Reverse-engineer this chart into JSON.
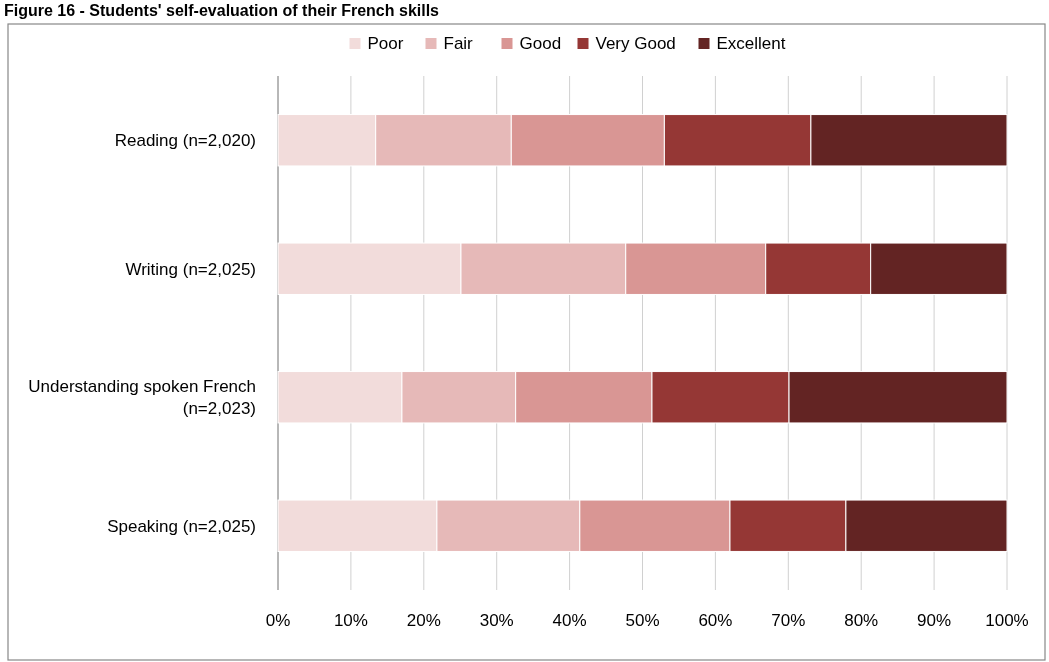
{
  "chart_data": {
    "type": "bar",
    "orientation": "horizontal",
    "stacked": true,
    "title": "Figure 16 - Students' self-evaluation of their French skills",
    "categories": [
      "Reading (n=2,020)",
      "Writing (n=2,025)",
      "Understanding spoken French (n=2,023)",
      "Speaking (n=2,025)"
    ],
    "series": [
      {
        "name": "Poor",
        "color": "#f2dcdb",
        "values": [
          13.4,
          25.1,
          17.0,
          21.8
        ]
      },
      {
        "name": "Fair",
        "color": "#e6b9b8",
        "values": [
          18.6,
          22.6,
          15.6,
          19.6
        ]
      },
      {
        "name": "Good",
        "color": "#d99694",
        "values": [
          21.0,
          19.2,
          18.7,
          20.6
        ]
      },
      {
        "name": "Very Good",
        "color": "#953735",
        "values": [
          20.1,
          14.4,
          18.8,
          15.9
        ]
      },
      {
        "name": "Excellent",
        "color": "#632423",
        "values": [
          26.9,
          18.7,
          29.9,
          22.1
        ]
      }
    ],
    "xlim": [
      0,
      100
    ],
    "xticks": [
      {
        "value": 0,
        "label": "0%"
      },
      {
        "value": 10,
        "label": "10%"
      },
      {
        "value": 20,
        "label": "20%"
      },
      {
        "value": 30,
        "label": "30%"
      },
      {
        "value": 40,
        "label": "40%"
      },
      {
        "value": 50,
        "label": "50%"
      },
      {
        "value": 60,
        "label": "60%"
      },
      {
        "value": 70,
        "label": "70%"
      },
      {
        "value": 80,
        "label": "80%"
      },
      {
        "value": 90,
        "label": "90%"
      },
      {
        "value": 100,
        "label": "100%"
      }
    ],
    "grid": "x",
    "legend": "top"
  }
}
